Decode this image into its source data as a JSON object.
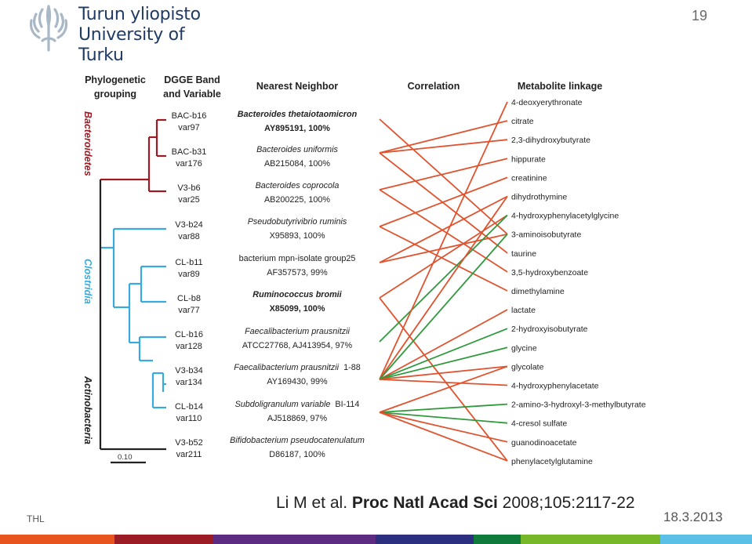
{
  "logo": {
    "line1": "Turun yliopisto",
    "line2": "University of Turku"
  },
  "page_number": "19",
  "figure": {
    "headers": {
      "phylo1": "Phylogenetic",
      "phylo2": "grouping",
      "dgge1": "DGGE Band",
      "dgge2": "and Variable",
      "neighbor": "Nearest Neighbor",
      "correlation": "Correlation",
      "metabolite": "Metabolite linkage"
    },
    "groups": [
      "Bacteroidetes",
      "Clostridia",
      "Actinobacteria"
    ],
    "scale": "0.10",
    "bands": [
      {
        "b": "BAC-b16",
        "v": "var97"
      },
      {
        "b": "BAC-b31",
        "v": "var176"
      },
      {
        "b": "V3-b6",
        "v": "var25"
      },
      {
        "b": "V3-b24",
        "v": "var88"
      },
      {
        "b": "CL-b11",
        "v": "var89"
      },
      {
        "b": "CL-b8",
        "v": "var77"
      },
      {
        "b": "CL-b16",
        "v": "var128"
      },
      {
        "b": "V3-b34",
        "v": "var134"
      },
      {
        "b": "CL-b14",
        "v": "var110"
      },
      {
        "b": "V3-b52",
        "v": "var211"
      }
    ],
    "neighbors": [
      {
        "name": "Bacteroides thetaiotaomicron",
        "acc": "AY895191, 100%"
      },
      {
        "name": "Bacteroides uniformis",
        "acc": "AB215084, 100%"
      },
      {
        "name": "Bacteroides coprocola",
        "acc": "AB200225, 100%"
      },
      {
        "name": "Pseudobutyrivibrio ruminis",
        "acc": "X95893, 100%"
      },
      {
        "name": "bacterium mpn-isolate group25",
        "acc": "AF357573, 99%"
      },
      {
        "name": "Ruminococcus bromii",
        "acc": "X85099, 100%"
      },
      {
        "name": "Faecalibacterium prausnitzii",
        "acc": "ATCC27768, AJ413954, 97%"
      },
      {
        "name": "Faecalibacterium prausnitzii",
        "extra": "1-88",
        "acc": "AY169430, 99%"
      },
      {
        "name": "Subdoligranulum variable",
        "extra": "BI-114",
        "acc": "AJ518869, 97%"
      },
      {
        "name": "Bifidobacterium pseudocatenulatum",
        "acc": "D86187, 100%"
      }
    ],
    "metabolites": [
      "4-deoxyerythronate",
      "citrate",
      "2,3-dihydroxybutyrate",
      "hippurate",
      "creatinine",
      "dihydrothymine",
      "4-hydroxyphenylacetylglycine",
      "3-aminoisobutyrate",
      "taurine",
      "3,5-hydroxybenzoate",
      "dimethylamine",
      "lactate",
      "2-hydroxyisobutyrate",
      "glycine",
      "glycolate",
      "4-hydroxyphenylacetate",
      "2-amino-3-hydroxyl-3-methylbutyrate",
      "4-cresol sulfate",
      "guanodinoacetate",
      "phenylacetylglutamine"
    ],
    "links": [
      {
        "from": 0,
        "to": 7,
        "color": "red"
      },
      {
        "from": 1,
        "to": 1,
        "color": "red"
      },
      {
        "from": 1,
        "to": 2,
        "color": "red"
      },
      {
        "from": 1,
        "to": 8,
        "color": "red"
      },
      {
        "from": 2,
        "to": 3,
        "color": "red"
      },
      {
        "from": 2,
        "to": 9,
        "color": "red"
      },
      {
        "from": 3,
        "to": 4,
        "color": "red"
      },
      {
        "from": 3,
        "to": 10,
        "color": "red"
      },
      {
        "from": 4,
        "to": 5,
        "color": "red"
      },
      {
        "from": 4,
        "to": 7,
        "color": "red"
      },
      {
        "from": 5,
        "to": 6,
        "color": "red"
      },
      {
        "from": 5,
        "to": 19,
        "color": "red"
      },
      {
        "from": 6,
        "to": 6,
        "color": "green"
      },
      {
        "from": 7,
        "to": 0,
        "color": "red"
      },
      {
        "from": 7,
        "to": 5,
        "color": "red"
      },
      {
        "from": 7,
        "to": 7,
        "color": "green"
      },
      {
        "from": 7,
        "to": 11,
        "color": "red"
      },
      {
        "from": 7,
        "to": 12,
        "color": "green"
      },
      {
        "from": 7,
        "to": 13,
        "color": "green"
      },
      {
        "from": 7,
        "to": 14,
        "color": "red"
      },
      {
        "from": 7,
        "to": 15,
        "color": "red"
      },
      {
        "from": 8,
        "to": 14,
        "color": "red"
      },
      {
        "from": 8,
        "to": 16,
        "color": "green"
      },
      {
        "from": 8,
        "to": 17,
        "color": "green"
      },
      {
        "from": 8,
        "to": 18,
        "color": "red"
      },
      {
        "from": 8,
        "to": 19,
        "color": "red"
      }
    ],
    "colors": {
      "red": "#e0532f",
      "green": "#2e9a3c",
      "bacteroidetes": "#9b1c24",
      "clostridia": "#3aa9de",
      "actino": "#222222"
    }
  },
  "citation": {
    "prefix": "Li M et al. ",
    "journal": "Proc Natl Acad Sci",
    "rest": " 2008;105:2117-22"
  },
  "footer": {
    "left": "THL",
    "date": "18.3.2013"
  },
  "footer_bar_colors": [
    "#e8541e",
    "#9b1c24",
    "#5b2c82",
    "#2b2f7e",
    "#0f7a3a",
    "#76b82a",
    "#5bc0e6"
  ]
}
